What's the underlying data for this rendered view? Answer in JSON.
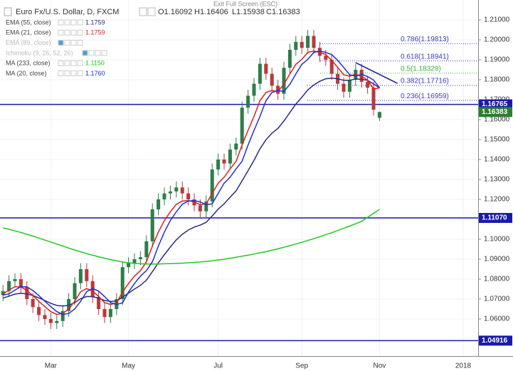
{
  "chart_data": {
    "type": "candlestick",
    "title": "Euro Fx/U.S. Dollar, D, FXCM",
    "ohlc_header": [
      "O1.16092",
      "H1.16406",
      "L1.15938",
      "C1.16383"
    ],
    "notice": "Exit Full Screen (ESC)",
    "categories": [
      null,
      null,
      null,
      null,
      null,
      null,
      null,
      null,
      "Mar",
      null,
      null,
      null,
      null,
      null,
      null,
      null,
      null,
      null,
      null,
      null,
      null,
      "May",
      null,
      null,
      null,
      null,
      null,
      null,
      null,
      null,
      null,
      null,
      null,
      null,
      null,
      null,
      "Jul",
      null,
      null,
      null,
      null,
      null,
      null,
      null,
      null,
      null,
      null,
      null,
      null,
      null,
      "Sep",
      null,
      null,
      null,
      null,
      null,
      null,
      null,
      null,
      null,
      null,
      null,
      null,
      "Nov",
      null,
      null,
      null,
      null,
      null,
      null,
      null,
      null,
      null,
      null,
      null,
      null,
      null,
      "2018",
      null,
      null
    ],
    "open": [
      1.072,
      1.074,
      1.079,
      1.08,
      1.076,
      1.07,
      1.066,
      1.062,
      1.06,
      1.058,
      1.059,
      1.064,
      1.07,
      1.078,
      1.085,
      1.079,
      1.071,
      1.065,
      1.061,
      1.065,
      1.07,
      1.086,
      1.088,
      1.09,
      1.091,
      1.099,
      1.115,
      1.12,
      1.123,
      1.124,
      1.126,
      1.123,
      1.12,
      1.117,
      1.114,
      1.119,
      1.135,
      1.14,
      1.138,
      1.145,
      1.148,
      1.166,
      1.172,
      1.178,
      1.188,
      1.183,
      1.177,
      1.173,
      1.186,
      1.195,
      1.199,
      1.196,
      1.202,
      1.196,
      1.192,
      1.19,
      1.183,
      1.178,
      1.174,
      1.18,
      1.185,
      1.179,
      1.176,
      1.16092,
      null,
      null,
      null,
      null,
      null,
      null,
      null,
      null,
      null,
      null,
      null,
      null,
      null,
      null,
      null,
      null
    ],
    "high": [
      1.077,
      1.082,
      1.083,
      1.083,
      1.079,
      1.073,
      1.069,
      1.065,
      1.063,
      1.062,
      1.067,
      1.073,
      1.081,
      1.088,
      1.088,
      1.082,
      1.074,
      1.068,
      1.068,
      1.073,
      1.089,
      1.091,
      1.093,
      1.094,
      1.102,
      1.118,
      1.123,
      1.126,
      1.127,
      1.129,
      1.129,
      1.126,
      1.123,
      1.12,
      1.122,
      1.138,
      1.143,
      1.143,
      1.148,
      1.151,
      1.169,
      1.175,
      1.181,
      1.191,
      1.191,
      1.186,
      1.18,
      1.189,
      1.198,
      1.202,
      1.202,
      1.205,
      1.205,
      1.199,
      1.195,
      1.193,
      1.186,
      1.181,
      1.183,
      1.188,
      1.188,
      1.182,
      1.179,
      1.16406,
      null,
      null,
      null,
      null,
      null,
      null,
      null,
      null,
      null,
      null,
      null,
      null,
      null,
      null,
      null,
      null
    ],
    "low": [
      1.069,
      1.071,
      1.076,
      1.073,
      1.067,
      1.063,
      1.059,
      1.057,
      1.055,
      1.055,
      1.056,
      1.061,
      1.067,
      1.075,
      1.076,
      1.068,
      1.062,
      1.058,
      1.058,
      1.062,
      1.067,
      1.083,
      1.085,
      1.087,
      1.088,
      1.096,
      1.112,
      1.117,
      1.12,
      1.121,
      1.12,
      1.117,
      1.114,
      1.111,
      1.111,
      1.116,
      1.132,
      1.135,
      1.135,
      1.142,
      1.145,
      1.163,
      1.169,
      1.175,
      1.18,
      1.174,
      1.17,
      1.17,
      1.183,
      1.192,
      1.193,
      1.193,
      1.193,
      1.189,
      1.187,
      1.18,
      1.175,
      1.171,
      1.171,
      1.177,
      1.176,
      1.173,
      1.162,
      1.15938,
      null,
      null,
      null,
      null,
      null,
      null,
      null,
      null,
      null,
      null,
      null,
      null,
      null,
      null,
      null,
      null
    ],
    "close": [
      1.074,
      1.079,
      1.08,
      1.076,
      1.07,
      1.066,
      1.062,
      1.06,
      1.058,
      1.059,
      1.064,
      1.07,
      1.078,
      1.085,
      1.079,
      1.071,
      1.065,
      1.061,
      1.065,
      1.07,
      1.086,
      1.088,
      1.09,
      1.091,
      1.099,
      1.115,
      1.12,
      1.123,
      1.124,
      1.126,
      1.123,
      1.12,
      1.117,
      1.114,
      1.119,
      1.135,
      1.14,
      1.138,
      1.145,
      1.148,
      1.166,
      1.172,
      1.178,
      1.188,
      1.183,
      1.177,
      1.173,
      1.186,
      1.195,
      1.199,
      1.196,
      1.202,
      1.196,
      1.192,
      1.19,
      1.183,
      1.178,
      1.174,
      1.18,
      1.185,
      1.179,
      1.176,
      1.165,
      1.16383,
      null,
      null,
      null,
      null,
      null,
      null,
      null,
      null,
      null,
      null,
      null,
      null,
      null,
      null,
      null,
      null
    ],
    "up_color": "#2f7d4a",
    "down_color": "#b83a3a",
    "series": [
      {
        "name": "EMA (55, close)",
        "legend_value": "1.1759",
        "color": "#2b2b80",
        "visible": true,
        "values": [
          1.0705,
          1.0715,
          1.0725,
          1.0729,
          1.0726,
          1.0718,
          1.0706,
          1.0693,
          1.0679,
          1.0668,
          1.0665,
          1.0669,
          1.0682,
          1.0702,
          1.0713,
          1.0712,
          1.0705,
          1.0693,
          1.0688,
          1.069,
          1.071,
          1.073,
          1.075,
          1.0769,
          1.0795,
          1.0838,
          1.0882,
          1.0923,
          1.0961,
          1.0997,
          1.1025,
          1.1046,
          1.1061,
          1.1071,
          1.1085,
          1.1117,
          1.1151,
          1.1178,
          1.1211,
          1.1243,
          1.1293,
          1.1344,
          1.1396,
          1.1454,
          1.1499,
          1.1532,
          1.1556,
          1.1593,
          1.1636,
          1.1678,
          1.1712,
          1.1749,
          1.1774,
          1.1792,
          1.1805,
          1.1808,
          1.1805,
          1.1797,
          1.1797,
          1.1804,
          1.1802,
          1.1797,
          1.1779,
          1.1759,
          null,
          null,
          null,
          null,
          null,
          null,
          null,
          null,
          null,
          null,
          null,
          null,
          null,
          null,
          null,
          null
        ]
      },
      {
        "name": "EMA (21, close)",
        "legend_value": "1.1759",
        "color": "#e31b1b",
        "visible": true,
        "values": [
          1.0726,
          1.0745,
          1.0762,
          1.0761,
          1.0743,
          1.0718,
          1.0689,
          1.0662,
          1.0637,
          1.0623,
          1.0628,
          1.065,
          1.0689,
          1.0737,
          1.0753,
          1.074,
          1.0713,
          1.0682,
          1.0673,
          1.0681,
          1.0735,
          1.0778,
          1.0815,
          1.0843,
          1.0887,
          1.0966,
          1.1036,
          1.1094,
          1.1138,
          1.1175,
          1.1192,
          1.1194,
          1.1187,
          1.1173,
          1.1178,
          1.123,
          1.1281,
          1.1311,
          1.1353,
          1.1391,
          1.1472,
          1.1546,
          1.1616,
          1.1695,
          1.1736,
          1.1746,
          1.1741,
          1.1777,
          1.1829,
          1.1877,
          1.1902,
          1.1937,
          1.1944,
          1.1937,
          1.1926,
          1.1897,
          1.1862,
          1.1825,
          1.1818,
          1.1828,
          1.1816,
          1.1799,
          1.1754,
          1.1759,
          null,
          null,
          null,
          null,
          null,
          null,
          null,
          null,
          null,
          null,
          null,
          null,
          null,
          null,
          null,
          null
        ]
      },
      {
        "name": "EMA (89, close)",
        "color": "#9aa6c8",
        "visible": false
      },
      {
        "name": "Ichimoku (9, 26, 52, 26)",
        "color": "#9aa6c8",
        "visible": false
      },
      {
        "name": "MA (233, close)",
        "legend_value": "1.1150",
        "color": "#22c822",
        "visible": true,
        "values": [
          1.1057,
          1.105,
          1.1042,
          1.1034,
          1.1025,
          1.1016,
          1.1006,
          1.0996,
          1.0986,
          1.0976,
          1.0966,
          1.0956,
          1.0946,
          1.0937,
          1.0928,
          1.092,
          1.0912,
          1.0905,
          1.0898,
          1.0892,
          1.0886,
          1.0882,
          1.0879,
          1.0877,
          1.0876,
          1.0876,
          1.0876,
          1.0877,
          1.0878,
          1.0879,
          1.088,
          1.0882,
          1.0884,
          1.0886,
          1.0889,
          1.0892,
          1.0896,
          1.09,
          1.0905,
          1.091,
          1.0915,
          1.092,
          1.0926,
          1.0932,
          1.0938,
          1.0945,
          1.0952,
          1.096,
          1.0968,
          1.0976,
          1.0985,
          1.0994,
          1.1003,
          1.1013,
          1.1023,
          1.1033,
          1.1044,
          1.1055,
          1.1066,
          1.1078,
          1.109,
          1.111,
          1.113,
          1.115,
          null,
          null,
          null,
          null,
          null,
          null,
          null,
          null,
          null,
          null,
          null,
          null,
          null,
          null,
          null,
          null
        ]
      },
      {
        "name": "MA (20, close)",
        "legend_value": "1.1760",
        "color": "#1c2fd6",
        "visible": true,
        "values": [
          1.072,
          1.0726,
          1.0745,
          1.0762,
          1.0761,
          1.0743,
          1.0718,
          1.0689,
          1.0662,
          1.0637,
          1.0623,
          1.0628,
          1.065,
          1.0689,
          1.0737,
          1.0753,
          1.074,
          1.0713,
          1.0682,
          1.0673,
          1.0681,
          1.0735,
          1.0778,
          1.0815,
          1.0843,
          1.0887,
          1.0966,
          1.1036,
          1.1094,
          1.1138,
          1.1175,
          1.1192,
          1.1194,
          1.1187,
          1.1173,
          1.1178,
          1.123,
          1.1281,
          1.1311,
          1.1353,
          1.1391,
          1.1472,
          1.1546,
          1.1616,
          1.1695,
          1.1736,
          1.1746,
          1.1741,
          1.1777,
          1.1829,
          1.1877,
          1.1902,
          1.1937,
          1.1944,
          1.1937,
          1.1926,
          1.1897,
          1.1862,
          1.1825,
          1.1818,
          1.1828,
          1.1816,
          1.1799,
          1.176,
          null,
          null,
          null,
          null,
          null,
          null,
          null,
          null,
          null,
          null,
          null,
          null,
          null,
          null,
          null,
          null
        ]
      }
    ],
    "ylim": [
      1.04143,
      1.22
    ],
    "yticks": [
      {
        "value": 1.06,
        "label": "1.06000"
      },
      {
        "value": 1.07,
        "label": "1.07000"
      },
      {
        "value": 1.08,
        "label": "1.08000"
      },
      {
        "value": 1.09,
        "label": "1.09000"
      },
      {
        "value": 1.1,
        "label": "1.10000"
      },
      {
        "value": 1.11,
        "label": "1.11000"
      },
      {
        "value": 1.12,
        "label": "1.12000"
      },
      {
        "value": 1.13,
        "label": "1.13000"
      },
      {
        "value": 1.14,
        "label": "1.14000"
      },
      {
        "value": 1.15,
        "label": "1.15000"
      },
      {
        "value": 1.16,
        "label": "1.16000"
      },
      {
        "value": 1.17,
        "label": "1.17000"
      },
      {
        "value": 1.18,
        "label": "1.18000"
      },
      {
        "value": 1.19,
        "label": "1.19000"
      },
      {
        "value": 1.2,
        "label": "1.20000"
      },
      {
        "value": 1.21,
        "label": "1.21000"
      }
    ],
    "grid": true,
    "hlines": [
      {
        "value": 1.16765,
        "label": "1.16765"
      },
      {
        "value": 1.1107,
        "label": "1.11070"
      },
      {
        "value": 1.04916,
        "label": "1.04916"
      }
    ],
    "hline_color": "#1a1aa8",
    "last_price": 1.16383,
    "last_price_color": "#2e7d32",
    "fib_levels": [
      {
        "value": 1.19813,
        "label": "0.786(1.19813)",
        "color": "#3a3acc"
      },
      {
        "value": 1.18941,
        "label": "0.618(1.18941)",
        "color": "#3a3acc"
      },
      {
        "value": 1.18329,
        "label": "0.5(1.18329)",
        "color": "#3fae3f"
      },
      {
        "value": 1.17716,
        "label": "0.382(1.17716)",
        "color": "#3a3acc"
      },
      {
        "value": 1.16959,
        "label": "0.236(1.16959)",
        "color": "#3a3acc"
      }
    ],
    "trendline": {
      "x": [
        59,
        66
      ],
      "y": [
        1.1886,
        1.1782
      ],
      "color": "#1a1aa8"
    }
  }
}
